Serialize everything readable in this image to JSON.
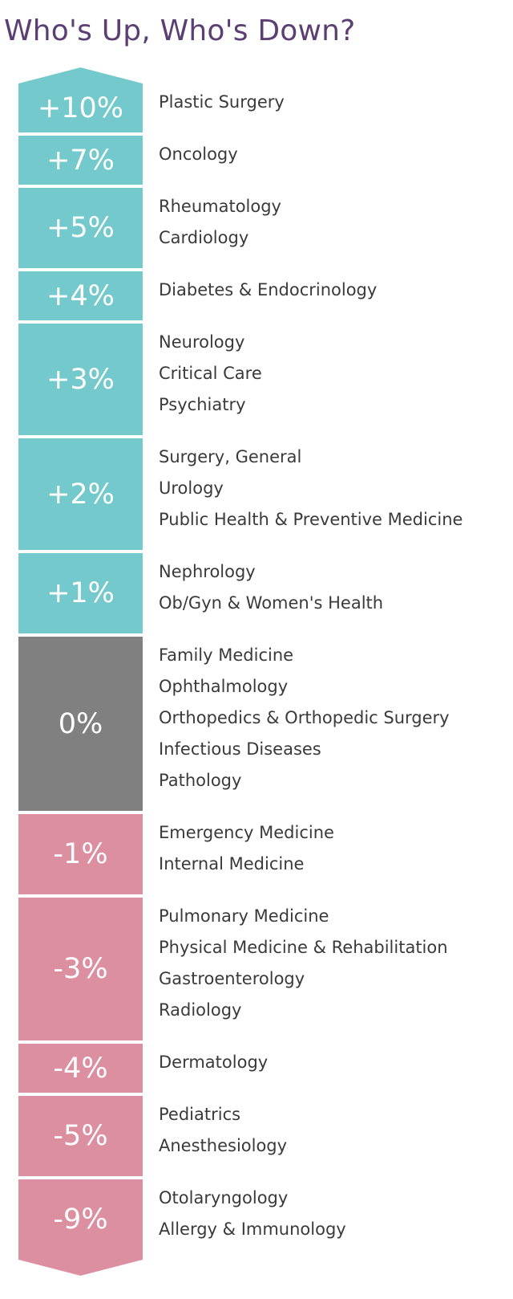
{
  "title": "Who's Up, Who's Down?",
  "colors": {
    "up": "#73c9cb",
    "zero": "#808080",
    "down": "#dc8fa1",
    "title": "#5b3f73"
  },
  "groups": [
    {
      "label": "+10%",
      "value": 10,
      "specialties": [
        "Plastic Surgery"
      ]
    },
    {
      "label": "+7%",
      "value": 7,
      "specialties": [
        "Oncology"
      ]
    },
    {
      "label": "+5%",
      "value": 5,
      "specialties": [
        "Rheumatology",
        "Cardiology"
      ]
    },
    {
      "label": "+4%",
      "value": 4,
      "specialties": [
        "Diabetes & Endocrinology"
      ]
    },
    {
      "label": "+3%",
      "value": 3,
      "specialties": [
        "Neurology",
        "Critical Care",
        "Psychiatry"
      ]
    },
    {
      "label": "+2%",
      "value": 2,
      "specialties": [
        "Surgery, General",
        "Urology",
        "Public Health & Preventive Medicine"
      ]
    },
    {
      "label": "+1%",
      "value": 1,
      "specialties": [
        "Nephrology",
        "Ob/Gyn & Women's Health"
      ]
    },
    {
      "label": "0%",
      "value": 0,
      "specialties": [
        "Family Medicine",
        "Ophthalmology",
        "Orthopedics & Orthopedic Surgery",
        "Infectious Diseases",
        "Pathology"
      ]
    },
    {
      "label": "-1%",
      "value": -1,
      "specialties": [
        "Emergency Medicine",
        "Internal Medicine"
      ]
    },
    {
      "label": "-3%",
      "value": -3,
      "specialties": [
        "Pulmonary Medicine",
        "Physical Medicine & Rehabilitation",
        "Gastroenterology",
        "Radiology"
      ]
    },
    {
      "label": "-4%",
      "value": -4,
      "specialties": [
        "Dermatology"
      ]
    },
    {
      "label": "-5%",
      "value": -5,
      "specialties": [
        "Pediatrics",
        "Anesthesiology"
      ]
    },
    {
      "label": "-9%",
      "value": -9,
      "specialties": [
        "Otolaryngology",
        "Allergy & Immunology"
      ]
    }
  ]
}
